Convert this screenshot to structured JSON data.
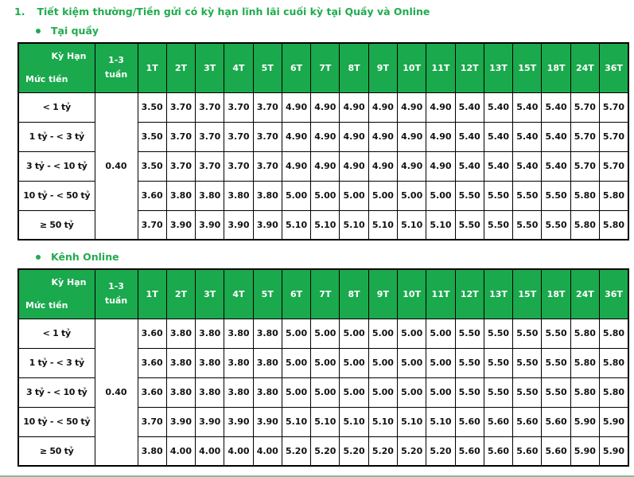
{
  "page": {
    "title_number": "1.",
    "title": "Tiết kiệm thường/Tiền gửi có kỳ hạn lĩnh lãi cuối kỳ tại Quầy và Online"
  },
  "colors": {
    "brand_green": "#1aa94c",
    "header_text": "#ffffff",
    "cell_text": "#111111",
    "border": "#000000"
  },
  "table_header": {
    "term_label": "Kỳ Hạn",
    "amount_label": "Mức tiền",
    "week_line1": "1-3",
    "week_line2": "tuần",
    "terms": [
      "1T",
      "2T",
      "3T",
      "4T",
      "5T",
      "6T",
      "7T",
      "8T",
      "9T",
      "10T",
      "11T",
      "12T",
      "13T",
      "15T",
      "18T",
      "24T",
      "36T"
    ]
  },
  "tables": [
    {
      "section_label": "Tại quầy",
      "week_rate": "0.40",
      "rows": [
        {
          "label": "< 1 tỷ",
          "values": [
            "3.50",
            "3.70",
            "3.70",
            "3.70",
            "3.70",
            "4.90",
            "4.90",
            "4.90",
            "4.90",
            "4.90",
            "4.90",
            "5.40",
            "5.40",
            "5.40",
            "5.40",
            "5.70",
            "5.70"
          ]
        },
        {
          "label": "1 tỷ - < 3 tỷ",
          "values": [
            "3.50",
            "3.70",
            "3.70",
            "3.70",
            "3.70",
            "4.90",
            "4.90",
            "4.90",
            "4.90",
            "4.90",
            "4.90",
            "5.40",
            "5.40",
            "5.40",
            "5.40",
            "5.70",
            "5.70"
          ]
        },
        {
          "label": "3 tỷ - < 10 tỷ",
          "values": [
            "3.50",
            "3.70",
            "3.70",
            "3.70",
            "3.70",
            "4.90",
            "4.90",
            "4.90",
            "4.90",
            "4.90",
            "4.90",
            "5.40",
            "5.40",
            "5.40",
            "5.40",
            "5.70",
            "5.70"
          ]
        },
        {
          "label": "10 tỷ - < 50 tỷ",
          "values": [
            "3.60",
            "3.80",
            "3.80",
            "3.80",
            "3.80",
            "5.00",
            "5.00",
            "5.00",
            "5.00",
            "5.00",
            "5.00",
            "5.50",
            "5.50",
            "5.50",
            "5.50",
            "5.80",
            "5.80"
          ]
        },
        {
          "label": "≥ 50 tỷ",
          "values": [
            "3.70",
            "3.90",
            "3.90",
            "3.90",
            "3.90",
            "5.10",
            "5.10",
            "5.10",
            "5.10",
            "5.10",
            "5.10",
            "5.50",
            "5.50",
            "5.50",
            "5.50",
            "5.80",
            "5.80"
          ]
        }
      ]
    },
    {
      "section_label": "Kênh Online",
      "week_rate": "0.40",
      "rows": [
        {
          "label": "< 1 tỷ",
          "values": [
            "3.60",
            "3.80",
            "3.80",
            "3.80",
            "3.80",
            "5.00",
            "5.00",
            "5.00",
            "5.00",
            "5.00",
            "5.00",
            "5.50",
            "5.50",
            "5.50",
            "5.50",
            "5.80",
            "5.80"
          ]
        },
        {
          "label": "1 tỷ - < 3 tỷ",
          "values": [
            "3.60",
            "3.80",
            "3.80",
            "3.80",
            "3.80",
            "5.00",
            "5.00",
            "5.00",
            "5.00",
            "5.00",
            "5.00",
            "5.50",
            "5.50",
            "5.50",
            "5.50",
            "5.80",
            "5.80"
          ]
        },
        {
          "label": "3 tỷ - < 10 tỷ",
          "values": [
            "3.60",
            "3.80",
            "3.80",
            "3.80",
            "3.80",
            "5.00",
            "5.00",
            "5.00",
            "5.00",
            "5.00",
            "5.00",
            "5.50",
            "5.50",
            "5.50",
            "5.50",
            "5.80",
            "5.80"
          ]
        },
        {
          "label": "10 tỷ - < 50 tỷ",
          "values": [
            "3.70",
            "3.90",
            "3.90",
            "3.90",
            "3.90",
            "5.10",
            "5.10",
            "5.10",
            "5.10",
            "5.10",
            "5.10",
            "5.60",
            "5.60",
            "5.60",
            "5.60",
            "5.90",
            "5.90"
          ]
        },
        {
          "label": "≥ 50 tỷ",
          "values": [
            "3.80",
            "4.00",
            "4.00",
            "4.00",
            "4.00",
            "5.20",
            "5.20",
            "5.20",
            "5.20",
            "5.20",
            "5.20",
            "5.60",
            "5.60",
            "5.60",
            "5.60",
            "5.90",
            "5.90"
          ]
        }
      ]
    }
  ]
}
